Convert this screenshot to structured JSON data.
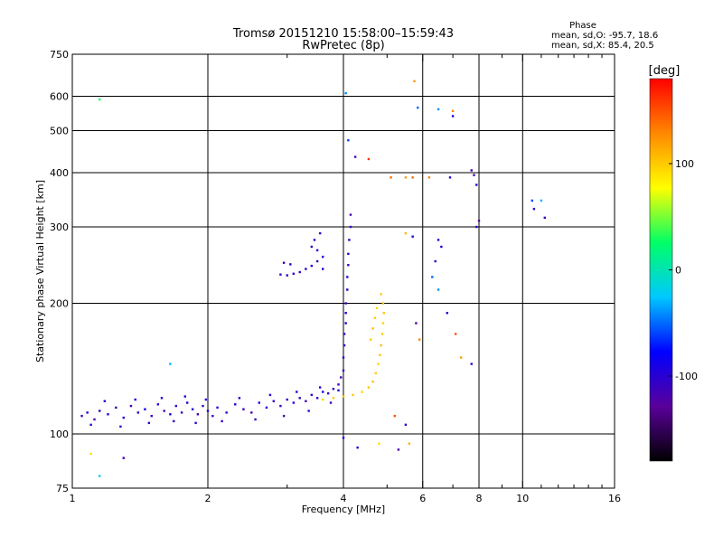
{
  "header": {
    "title_line1": "Tromsø 20151210 15:58:00–15:59:43",
    "title_line2": "RwPretec (8p)"
  },
  "phase_box": {
    "label": "Phase",
    "line_o": "mean, sd,O: -95.7, 18.6",
    "line_x": "mean, sd,X:  85.4, 20.5"
  },
  "colorbar": {
    "unit_label": "[deg]",
    "ticks": [
      {
        "value": 100,
        "label": "100"
      },
      {
        "value": 0,
        "label": "0"
      },
      {
        "value": -100,
        "label": "-100"
      }
    ],
    "range": [
      -180,
      180
    ],
    "color_stops": [
      "#000000",
      "#5a009a",
      "#0000ff",
      "#00c8ff",
      "#00ff66",
      "#ffff00",
      "#ff8800",
      "#ff0000"
    ]
  },
  "chart_data": {
    "type": "scatter",
    "title": "Tromsø 20151210 15:58:00–15:59:43",
    "subtitle": "RwPretec (8p)",
    "xlabel": "Frequency [MHz]",
    "ylabel": "Stationary phase Virtual Height [km]",
    "x_scale": "log",
    "y_scale": "log",
    "xlim": [
      1,
      16
    ],
    "ylim": [
      75,
      750
    ],
    "x_ticks": [
      {
        "value": 1,
        "label": "1"
      },
      {
        "value": 2,
        "label": "2"
      },
      {
        "value": 4,
        "label": "4"
      },
      {
        "value": 6,
        "label": "6"
      },
      {
        "value": 8,
        "label": "8"
      },
      {
        "value": 10,
        "label": "10"
      },
      {
        "value": 16,
        "label": "16"
      }
    ],
    "x_minor_ticks": [
      3,
      5,
      7,
      9,
      11,
      12,
      13,
      14,
      15
    ],
    "y_ticks": [
      {
        "value": 75,
        "label": "75"
      },
      {
        "value": 100,
        "label": "100"
      },
      {
        "value": 200,
        "label": "200"
      },
      {
        "value": 300,
        "label": "300"
      },
      {
        "value": 400,
        "label": "400"
      },
      {
        "value": 500,
        "label": "500"
      },
      {
        "value": 600,
        "label": "600"
      },
      {
        "value": 750,
        "label": "750"
      }
    ],
    "x_grid": [
      2,
      4,
      6,
      8,
      10
    ],
    "y_grid": [
      100,
      200,
      300,
      400,
      500,
      600
    ],
    "grid": true,
    "color_variable": "phase (deg)",
    "series": [
      {
        "key": "o_trace",
        "points": [
          [
            1.05,
            110,
            -110
          ],
          [
            1.08,
            112,
            -100
          ],
          [
            1.12,
            108,
            -120
          ],
          [
            1.15,
            113,
            -105
          ],
          [
            1.2,
            111,
            -95
          ],
          [
            1.25,
            115,
            -110
          ],
          [
            1.3,
            109,
            -100
          ],
          [
            1.35,
            116,
            -115
          ],
          [
            1.4,
            112,
            -105
          ],
          [
            1.45,
            114,
            -90
          ],
          [
            1.5,
            110,
            -110
          ],
          [
            1.55,
            117,
            -100
          ],
          [
            1.6,
            113,
            -120
          ],
          [
            1.65,
            111,
            -95
          ],
          [
            1.7,
            116,
            -105
          ],
          [
            1.75,
            112,
            -110
          ],
          [
            1.8,
            118,
            -100
          ],
          [
            1.85,
            114,
            -95
          ],
          [
            1.9,
            111,
            -115
          ],
          [
            1.95,
            116,
            -105
          ],
          [
            2.0,
            113,
            -100
          ],
          [
            2.05,
            110,
            -110
          ],
          [
            2.1,
            115,
            -95
          ],
          [
            2.2,
            112,
            -105
          ],
          [
            2.3,
            117,
            -100
          ],
          [
            2.4,
            114,
            -110
          ],
          [
            2.5,
            112,
            -120
          ],
          [
            2.6,
            118,
            -100
          ],
          [
            2.7,
            115,
            -95
          ],
          [
            2.8,
            119,
            -105
          ],
          [
            2.9,
            116,
            -110
          ],
          [
            3.0,
            120,
            -100
          ],
          [
            3.1,
            118,
            -95
          ],
          [
            3.2,
            121,
            -105
          ],
          [
            3.3,
            119,
            -115
          ],
          [
            3.4,
            123,
            -100
          ],
          [
            3.5,
            121,
            -110
          ],
          [
            3.6,
            125,
            -95
          ],
          [
            3.7,
            124,
            -105
          ],
          [
            3.8,
            127,
            -100
          ],
          [
            3.9,
            130,
            -110
          ],
          [
            3.95,
            135,
            -115
          ],
          [
            4.0,
            140,
            -110
          ],
          [
            4.0,
            150,
            -105
          ],
          [
            4.02,
            160,
            -100
          ],
          [
            4.02,
            170,
            -110
          ],
          [
            4.05,
            180,
            -105
          ],
          [
            4.05,
            190,
            -100
          ],
          [
            4.05,
            200,
            -110
          ],
          [
            4.08,
            215,
            -95
          ],
          [
            4.08,
            230,
            -105
          ],
          [
            4.1,
            245,
            -110
          ],
          [
            4.1,
            260,
            -100
          ],
          [
            4.12,
            280,
            -105
          ],
          [
            4.15,
            300,
            -110
          ],
          [
            4.15,
            320,
            -115
          ]
        ]
      },
      {
        "key": "o_scatter_low",
        "points": [
          [
            1.1,
            105,
            -100
          ],
          [
            1.18,
            119,
            -90
          ],
          [
            1.28,
            104,
            -110
          ],
          [
            1.38,
            120,
            -95
          ],
          [
            1.48,
            106,
            -105
          ],
          [
            1.58,
            121,
            -100
          ],
          [
            1.68,
            107,
            -110
          ],
          [
            1.78,
            122,
            -95
          ],
          [
            1.88,
            106,
            -105
          ],
          [
            1.98,
            120,
            -100
          ],
          [
            2.15,
            107,
            -110
          ],
          [
            2.35,
            121,
            -95
          ],
          [
            2.55,
            108,
            -105
          ],
          [
            2.75,
            123,
            -100
          ],
          [
            2.95,
            110,
            -110
          ],
          [
            3.15,
            125,
            -95
          ],
          [
            3.35,
            113,
            -105
          ],
          [
            3.55,
            128,
            -100
          ],
          [
            3.75,
            118,
            -110
          ],
          [
            3.9,
            126,
            -95
          ]
        ]
      },
      {
        "key": "x_trace",
        "points": [
          [
            3.6,
            120,
            95
          ],
          [
            3.8,
            121,
            100
          ],
          [
            4.0,
            122,
            105
          ],
          [
            4.2,
            123,
            100
          ],
          [
            4.4,
            125,
            95
          ],
          [
            4.55,
            128,
            100
          ],
          [
            4.65,
            132,
            105
          ],
          [
            4.72,
            138,
            100
          ],
          [
            4.78,
            145,
            95
          ],
          [
            4.82,
            152,
            100
          ],
          [
            4.85,
            160,
            105
          ],
          [
            4.88,
            170,
            100
          ],
          [
            4.9,
            180,
            95
          ],
          [
            4.92,
            190,
            100
          ],
          [
            4.9,
            200,
            105
          ],
          [
            4.85,
            210,
            100
          ],
          [
            4.75,
            195,
            95
          ],
          [
            4.7,
            185,
            100
          ],
          [
            4.65,
            175,
            105
          ],
          [
            4.6,
            165,
            100
          ]
        ]
      },
      {
        "key": "f_layer",
        "points": [
          [
            2.9,
            233,
            -110
          ],
          [
            3.0,
            232,
            -105
          ],
          [
            3.1,
            234,
            -100
          ],
          [
            3.2,
            236,
            -110
          ],
          [
            3.3,
            240,
            -100
          ],
          [
            3.4,
            244,
            -95
          ],
          [
            3.5,
            250,
            -105
          ],
          [
            3.6,
            256,
            -100
          ],
          [
            3.5,
            265,
            -95
          ],
          [
            3.4,
            270,
            -100
          ],
          [
            3.45,
            280,
            -105
          ],
          [
            3.55,
            290,
            -100
          ],
          [
            2.95,
            248,
            -110
          ],
          [
            3.05,
            246,
            -100
          ],
          [
            3.6,
            240,
            -95
          ]
        ]
      },
      {
        "key": "sparse",
        "points": [
          [
            1.15,
            590,
            30
          ],
          [
            4.05,
            610,
            -40
          ],
          [
            5.75,
            650,
            120
          ],
          [
            5.85,
            565,
            -50
          ],
          [
            6.5,
            560,
            -40
          ],
          [
            7.0,
            555,
            130
          ],
          [
            7.0,
            540,
            -90
          ],
          [
            4.1,
            475,
            -60
          ],
          [
            4.25,
            435,
            -110
          ],
          [
            4.55,
            430,
            160
          ],
          [
            5.1,
            390,
            140
          ],
          [
            5.5,
            390,
            120
          ],
          [
            5.7,
            390,
            140
          ],
          [
            6.2,
            390,
            130
          ],
          [
            6.9,
            390,
            -100
          ],
          [
            7.7,
            405,
            -110
          ],
          [
            7.8,
            395,
            -115
          ],
          [
            7.9,
            375,
            -100
          ],
          [
            10.5,
            345,
            -60
          ],
          [
            11.0,
            345,
            -30
          ],
          [
            10.6,
            330,
            -100
          ],
          [
            11.2,
            315,
            -110
          ],
          [
            8.0,
            310,
            -130
          ],
          [
            7.9,
            300,
            -100
          ],
          [
            6.5,
            280,
            -100
          ],
          [
            6.6,
            270,
            -90
          ],
          [
            6.4,
            250,
            -100
          ],
          [
            6.3,
            230,
            -50
          ],
          [
            6.5,
            215,
            -40
          ],
          [
            5.7,
            285,
            -100
          ],
          [
            5.5,
            290,
            110
          ],
          [
            5.8,
            180,
            -120
          ],
          [
            5.9,
            165,
            130
          ],
          [
            6.8,
            190,
            -90
          ],
          [
            7.1,
            170,
            150
          ],
          [
            7.3,
            150,
            120
          ],
          [
            7.7,
            145,
            -110
          ],
          [
            1.65,
            145,
            -30
          ],
          [
            1.1,
            90,
            90
          ],
          [
            1.15,
            80,
            -20
          ],
          [
            4.0,
            98,
            -90
          ],
          [
            4.3,
            93,
            -100
          ],
          [
            4.8,
            95,
            90
          ],
          [
            5.3,
            92,
            -120
          ],
          [
            5.6,
            95,
            110
          ],
          [
            1.3,
            88,
            -120
          ],
          [
            5.2,
            110,
            150
          ],
          [
            5.5,
            105,
            -95
          ]
        ]
      }
    ]
  }
}
